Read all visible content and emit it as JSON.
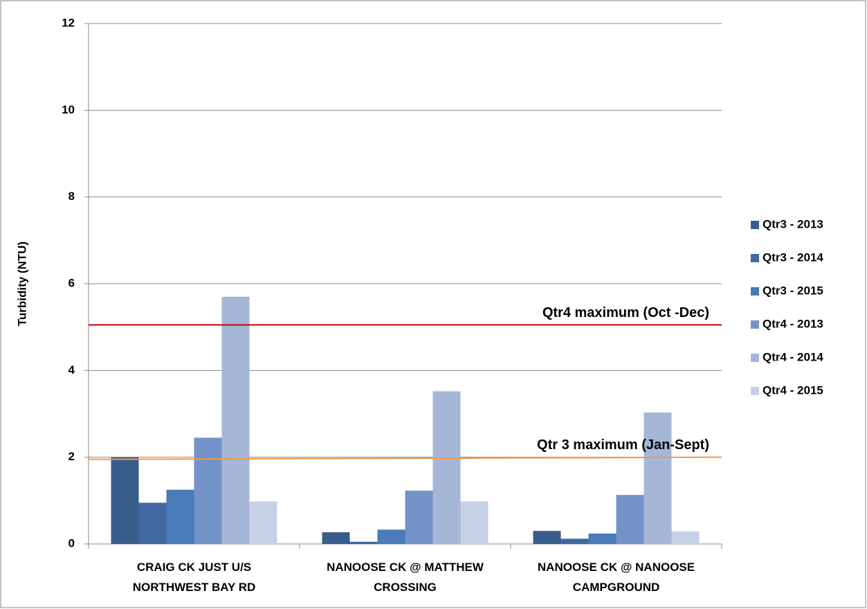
{
  "chart_data": {
    "type": "bar",
    "y_label": "Turbidity (NTU)",
    "categories": [
      "CRAIG CK JUST U/S NORTHWEST BAY RD",
      "NANOOSE CK @ MATTHEW CROSSING",
      "NANOOSE CK @ NANOOSE CAMPGROUND"
    ],
    "series": [
      {
        "name": "Qtr3 - 2013",
        "color": "#385d8a",
        "values": [
          2.0,
          0.27,
          0.3
        ]
      },
      {
        "name": "Qtr3 - 2014",
        "color": "#4168a0",
        "values": [
          0.95,
          0.05,
          0.12
        ]
      },
      {
        "name": "Qtr3 - 2015",
        "color": "#4a7ab8",
        "values": [
          1.25,
          0.33,
          0.24
        ]
      },
      {
        "name": "Qtr4 - 2013",
        "color": "#7393c8",
        "values": [
          2.45,
          1.23,
          1.13
        ]
      },
      {
        "name": "Qtr4 - 2014",
        "color": "#a5b6d7",
        "values": [
          5.7,
          3.52,
          3.03
        ]
      },
      {
        "name": "Qtr4 - 2015",
        "color": "#c7d1e5",
        "values": [
          0.98,
          0.98,
          0.29
        ]
      }
    ],
    "reference_lines": [
      {
        "label": "Qtr4 maximum (Oct -Dec)",
        "color": "#c00000",
        "values": [
          5.05,
          5.05
        ]
      },
      {
        "label": "Qtr 3 maximum (Jan-Sept)",
        "color": "#f79646",
        "values": [
          1.95,
          2.0
        ]
      }
    ],
    "ylim": [
      0,
      12
    ],
    "yticks": [
      0,
      2,
      4,
      6,
      8,
      10,
      12
    ],
    "grid": true,
    "legend": "right"
  }
}
